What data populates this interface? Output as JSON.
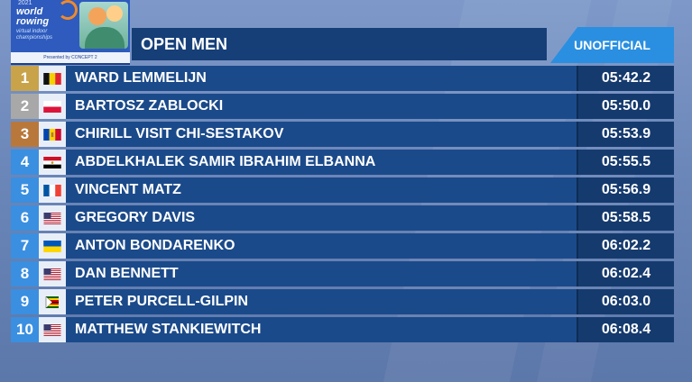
{
  "logo": {
    "year": "2021",
    "brand": "world rowing",
    "subtitle": "virtual indoor championships",
    "partner": "Presented by  CONCEPT 2"
  },
  "header": {
    "title": "OPEN MEN",
    "status": "UNOFFICIAL"
  },
  "results": [
    {
      "rank": "1",
      "name": "WARD LEMMELIJN",
      "time": "05:42.2",
      "flag": "belgium-flag-icon"
    },
    {
      "rank": "2",
      "name": "BARTOSZ ZABLOCKI",
      "time": "05:50.0",
      "flag": "poland-flag-icon"
    },
    {
      "rank": "3",
      "name": "CHIRILL VISIT CHI-SESTAKOV",
      "time": "05:53.9",
      "flag": "moldova-flag-icon"
    },
    {
      "rank": "4",
      "name": "ABDELKHALEK SAMIR IBRAHIM ELBANNA",
      "time": "05:55.5",
      "flag": "egypt-flag-icon"
    },
    {
      "rank": "5",
      "name": "VINCENT MATZ",
      "time": "05:56.9",
      "flag": "france-flag-icon"
    },
    {
      "rank": "6",
      "name": "GREGORY DAVIS",
      "time": "05:58.5",
      "flag": "usa-flag-icon"
    },
    {
      "rank": "7",
      "name": "ANTON BONDARENKO",
      "time": "06:02.2",
      "flag": "ukraine-flag-icon"
    },
    {
      "rank": "8",
      "name": "DAN BENNETT",
      "time": "06:02.4",
      "flag": "usa-flag-icon"
    },
    {
      "rank": "9",
      "name": "PETER PURCELL-GILPIN",
      "time": "06:03.0",
      "flag": "zimbabwe-flag-icon"
    },
    {
      "rank": "10",
      "name": "MATTHEW STANKIEWITCH",
      "time": "06:08.4",
      "flag": "usa-flag-icon"
    }
  ]
}
